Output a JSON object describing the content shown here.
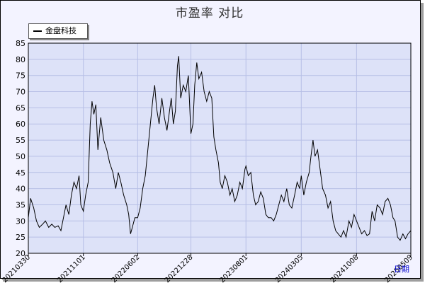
{
  "title": "市盈率  对比",
  "legend": {
    "label": "金盘科技",
    "color": "#000000"
  },
  "colors": {
    "plot_bg": "#dde2f8",
    "frame_bg": "#f3f3ff",
    "grid": "#b7bfe6",
    "series": "#000000",
    "xlabel": "#0000cc"
  },
  "chart_data": {
    "type": "line",
    "title": "市盈率  对比",
    "xlabel": "日期",
    "ylabel": "",
    "ylim": [
      20,
      85
    ],
    "yticks": [
      20,
      25,
      30,
      35,
      40,
      45,
      50,
      55,
      60,
      65,
      70,
      75,
      80,
      85
    ],
    "xticks": [
      "20210330",
      "20211101",
      "20220602",
      "20221228",
      "20230801",
      "20240305",
      "20241008",
      "20250509"
    ],
    "grid": true,
    "legend_position": "top-left",
    "x_range": [
      "2021-03-30",
      "2025-05-09"
    ],
    "series": [
      {
        "name": "金盘科技",
        "color": "#000000",
        "points": [
          [
            "2021-03-30",
            31
          ],
          [
            "2021-04-08",
            37
          ],
          [
            "2021-04-20",
            34
          ],
          [
            "2021-05-01",
            30
          ],
          [
            "2021-05-12",
            28
          ],
          [
            "2021-05-25",
            29
          ],
          [
            "2021-06-05",
            30
          ],
          [
            "2021-06-18",
            28
          ],
          [
            "2021-06-30",
            29
          ],
          [
            "2021-07-12",
            28
          ],
          [
            "2021-07-25",
            28.5
          ],
          [
            "2021-08-05",
            27
          ],
          [
            "2021-08-15",
            31
          ],
          [
            "2021-08-25",
            35
          ],
          [
            "2021-09-05",
            32
          ],
          [
            "2021-09-15",
            38
          ],
          [
            "2021-09-25",
            42
          ],
          [
            "2021-10-05",
            40
          ],
          [
            "2021-10-15",
            44
          ],
          [
            "2021-10-22",
            35
          ],
          [
            "2021-11-01",
            33
          ],
          [
            "2021-11-10",
            38
          ],
          [
            "2021-11-20",
            42
          ],
          [
            "2021-11-28",
            60
          ],
          [
            "2021-12-05",
            67
          ],
          [
            "2021-12-12",
            63
          ],
          [
            "2021-12-20",
            66
          ],
          [
            "2021-12-28",
            52
          ],
          [
            "2022-01-08",
            62
          ],
          [
            "2022-01-20",
            55
          ],
          [
            "2022-02-01",
            52
          ],
          [
            "2022-02-12",
            48
          ],
          [
            "2022-02-25",
            45
          ],
          [
            "2022-03-08",
            40
          ],
          [
            "2022-03-18",
            45
          ],
          [
            "2022-03-28",
            42
          ],
          [
            "2022-04-08",
            38
          ],
          [
            "2022-04-20",
            35
          ],
          [
            "2022-04-28",
            32
          ],
          [
            "2022-05-05",
            26
          ],
          [
            "2022-05-12",
            28
          ],
          [
            "2022-05-22",
            31
          ],
          [
            "2022-06-02",
            31
          ],
          [
            "2022-06-12",
            34
          ],
          [
            "2022-06-22",
            40
          ],
          [
            "2022-07-02",
            44
          ],
          [
            "2022-07-12",
            52
          ],
          [
            "2022-07-22",
            60
          ],
          [
            "2022-08-01",
            68
          ],
          [
            "2022-08-08",
            72
          ],
          [
            "2022-08-15",
            65
          ],
          [
            "2022-08-25",
            60
          ],
          [
            "2022-09-05",
            68
          ],
          [
            "2022-09-15",
            62
          ],
          [
            "2022-09-25",
            58
          ],
          [
            "2022-10-05",
            64
          ],
          [
            "2022-10-12",
            68
          ],
          [
            "2022-10-20",
            60
          ],
          [
            "2022-10-28",
            64
          ],
          [
            "2022-11-05",
            78
          ],
          [
            "2022-11-10",
            81
          ],
          [
            "2022-11-18",
            68
          ],
          [
            "2022-11-28",
            72
          ],
          [
            "2022-12-08",
            70
          ],
          [
            "2022-12-18",
            75
          ],
          [
            "2022-12-28",
            57
          ],
          [
            "2023-01-05",
            60
          ],
          [
            "2023-01-12",
            72
          ],
          [
            "2023-01-20",
            79
          ],
          [
            "2023-01-28",
            74
          ],
          [
            "2023-02-08",
            76
          ],
          [
            "2023-02-18",
            70
          ],
          [
            "2023-02-28",
            67
          ],
          [
            "2023-03-10",
            70
          ],
          [
            "2023-03-20",
            68
          ],
          [
            "2023-03-28",
            56
          ],
          [
            "2023-04-05",
            52
          ],
          [
            "2023-04-15",
            48
          ],
          [
            "2023-04-22",
            42
          ],
          [
            "2023-04-30",
            40
          ],
          [
            "2023-05-10",
            44
          ],
          [
            "2023-05-20",
            42
          ],
          [
            "2023-05-30",
            38
          ],
          [
            "2023-06-08",
            40
          ],
          [
            "2023-06-18",
            36
          ],
          [
            "2023-06-28",
            38
          ],
          [
            "2023-07-08",
            42
          ],
          [
            "2023-07-18",
            40
          ],
          [
            "2023-07-28",
            46
          ],
          [
            "2023-08-01",
            47
          ],
          [
            "2023-08-10",
            44
          ],
          [
            "2023-08-20",
            45
          ],
          [
            "2023-08-30",
            38
          ],
          [
            "2023-09-08",
            35
          ],
          [
            "2023-09-18",
            36
          ],
          [
            "2023-09-28",
            39
          ],
          [
            "2023-10-08",
            37
          ],
          [
            "2023-10-18",
            32
          ],
          [
            "2023-10-28",
            31
          ],
          [
            "2023-11-08",
            31
          ],
          [
            "2023-11-18",
            30
          ],
          [
            "2023-11-28",
            32
          ],
          [
            "2023-12-08",
            35
          ],
          [
            "2023-12-18",
            38
          ],
          [
            "2023-12-28",
            36
          ],
          [
            "2024-01-08",
            40
          ],
          [
            "2024-01-18",
            35
          ],
          [
            "2024-01-28",
            34
          ],
          [
            "2024-02-08",
            38
          ],
          [
            "2024-02-18",
            42
          ],
          [
            "2024-02-28",
            40
          ],
          [
            "2024-03-05",
            44
          ],
          [
            "2024-03-15",
            38
          ],
          [
            "2024-03-25",
            42
          ],
          [
            "2024-04-05",
            45
          ],
          [
            "2024-04-12",
            50
          ],
          [
            "2024-04-20",
            55
          ],
          [
            "2024-04-28",
            50
          ],
          [
            "2024-05-08",
            52
          ],
          [
            "2024-05-18",
            46
          ],
          [
            "2024-05-28",
            40
          ],
          [
            "2024-06-08",
            38
          ],
          [
            "2024-06-18",
            34
          ],
          [
            "2024-06-28",
            36
          ],
          [
            "2024-07-08",
            30
          ],
          [
            "2024-07-18",
            27
          ],
          [
            "2024-07-28",
            26
          ],
          [
            "2024-08-08",
            25
          ],
          [
            "2024-08-18",
            27
          ],
          [
            "2024-08-28",
            25
          ],
          [
            "2024-09-08",
            30
          ],
          [
            "2024-09-18",
            28
          ],
          [
            "2024-09-28",
            32
          ],
          [
            "2024-10-08",
            30
          ],
          [
            "2024-10-18",
            28
          ],
          [
            "2024-10-28",
            26
          ],
          [
            "2024-11-08",
            27
          ],
          [
            "2024-11-18",
            25.5
          ],
          [
            "2024-11-28",
            26
          ],
          [
            "2024-12-08",
            33
          ],
          [
            "2024-12-18",
            30
          ],
          [
            "2024-12-28",
            35
          ],
          [
            "2025-01-08",
            34
          ],
          [
            "2025-01-18",
            32
          ],
          [
            "2025-01-28",
            36
          ],
          [
            "2025-02-08",
            37
          ],
          [
            "2025-02-18",
            35
          ],
          [
            "2025-02-28",
            31
          ],
          [
            "2025-03-08",
            30
          ],
          [
            "2025-03-18",
            25
          ],
          [
            "2025-03-28",
            24
          ],
          [
            "2025-04-08",
            26
          ],
          [
            "2025-04-18",
            24.5
          ],
          [
            "2025-04-28",
            26
          ],
          [
            "2025-05-09",
            27
          ]
        ]
      }
    ]
  }
}
